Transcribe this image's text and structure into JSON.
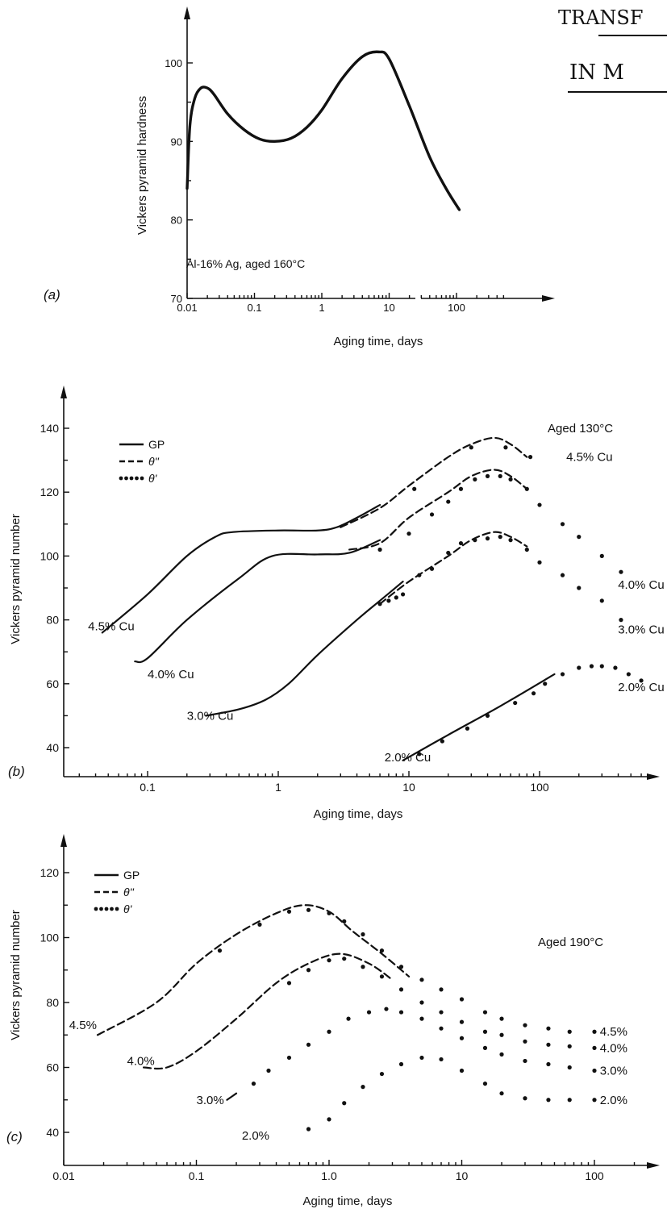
{
  "handwriting": {
    "line1": "TRANSF",
    "line2": "IN M"
  },
  "chart_data": [
    {
      "id": "a",
      "type": "line",
      "panel_label": "(a)",
      "annotation": "Al-16% Ag, aged 160°C",
      "xlabel": "Aging time, days",
      "ylabel": "Vickers pyramid hardness",
      "x_scale": "log",
      "xlim": [
        0.01,
        500
      ],
      "ylim": [
        70,
        107
      ],
      "x_ticks": [
        0.01,
        0.1,
        1,
        10,
        100
      ],
      "x_tick_labels": [
        "0.01",
        "0.1",
        "1",
        "10",
        "100"
      ],
      "y_ticks": [
        70,
        80,
        90,
        100
      ],
      "y_tick_labels": [
        "70",
        "80",
        "90",
        "100"
      ],
      "series": [
        {
          "style": "solid",
          "x": [
            0.01,
            0.011,
            0.013,
            0.016,
            0.02,
            0.025,
            0.04,
            0.07,
            0.12,
            0.2,
            0.35,
            0.6,
            1.0,
            2.0,
            4.0,
            7.0,
            10,
            20,
            40,
            70,
            110
          ],
          "y": [
            84,
            92,
            95.5,
            96.8,
            96.8,
            96,
            93.5,
            91.5,
            90.3,
            90,
            90.4,
            91.8,
            94,
            98,
            100.8,
            101.4,
            100.5,
            94.5,
            88,
            84,
            81.3
          ]
        }
      ]
    },
    {
      "id": "b",
      "type": "line",
      "panel_label": "(b)",
      "title": "Aged 130°C",
      "xlabel": "Aging time, days",
      "ylabel": "Vickers pyramid number",
      "x_scale": "log",
      "xlim": [
        0.02,
        1000
      ],
      "ylim": [
        35,
        150
      ],
      "x_ticks": [
        0.1,
        1,
        10,
        100
      ],
      "x_tick_labels": [
        "0.1",
        "1",
        "10",
        "100"
      ],
      "y_ticks": [
        40,
        60,
        80,
        100,
        120,
        140
      ],
      "y_tick_labels": [
        "40",
        "60",
        "80",
        "100",
        "120",
        "140"
      ],
      "legend": [
        {
          "style": "solid",
          "label": "GP"
        },
        {
          "style": "dashed",
          "label": "θ''"
        },
        {
          "style": "dotted",
          "label": "θ'"
        }
      ],
      "curve_labels": [
        {
          "text": "4.5% Cu",
          "x": 0.035,
          "y": 78
        },
        {
          "text": "4.0% Cu",
          "x": 0.1,
          "y": 63
        },
        {
          "text": "3.0% Cu",
          "x": 0.2,
          "y": 50
        },
        {
          "text": "2.0% Cu",
          "x": 6.5,
          "y": 37
        },
        {
          "text": "4.5% Cu",
          "x": 160,
          "y": 131
        },
        {
          "text": "4.0% Cu",
          "x": 660,
          "y": 91
        },
        {
          "text": "3.0% Cu",
          "x": 560,
          "y": 77
        },
        {
          "text": "2.0% Cu",
          "x": 900,
          "y": 59
        }
      ],
      "series": [
        {
          "alloy": "4.5% Cu",
          "phase": "GP",
          "style": "solid",
          "x": [
            0.045,
            0.1,
            0.2,
            0.33,
            0.45,
            1,
            2,
            2.8,
            4,
            6
          ],
          "y": [
            76,
            88,
            100,
            106,
            107.5,
            108,
            108,
            109,
            112,
            116
          ]
        },
        {
          "alloy": "4.5% Cu",
          "phase": "θ''",
          "style": "dashed",
          "x": [
            3,
            6,
            10,
            20,
            30,
            45,
            60,
            80
          ],
          "y": [
            109,
            115,
            122,
            131,
            135,
            137,
            135,
            131
          ]
        },
        {
          "alloy": "4.5% Cu",
          "phase": "θ'",
          "style": "dotted",
          "x": [
            11,
            30,
            55,
            85
          ],
          "y": [
            121,
            134,
            134,
            131
          ]
        },
        {
          "alloy": "4.0% Cu",
          "phase": "GP",
          "style": "solid",
          "x": [
            0.08,
            0.1,
            0.2,
            0.5,
            0.9,
            2,
            3.5,
            6
          ],
          "y": [
            67,
            68,
            80,
            93,
            100,
            100.5,
            101,
            105
          ]
        },
        {
          "alloy": "4.0% Cu",
          "phase": "θ''",
          "style": "dashed",
          "x": [
            3.5,
            6,
            10,
            20,
            30,
            45,
            60,
            80
          ],
          "y": [
            102,
            104,
            112,
            120,
            125,
            127,
            125,
            121
          ]
        },
        {
          "alloy": "4.0% Cu",
          "phase": "θ'",
          "style": "dotted",
          "x": [
            6,
            10,
            15,
            20,
            25,
            32,
            40,
            50,
            60,
            80,
            100,
            150,
            200,
            300,
            420
          ],
          "y": [
            102,
            107,
            113,
            117,
            121,
            124,
            125,
            125,
            124,
            121,
            116,
            110,
            106,
            100,
            95
          ]
        },
        {
          "alloy": "3.0% Cu",
          "phase": "GP",
          "style": "solid",
          "x": [
            0.28,
            0.5,
            0.8,
            1.2,
            2,
            4,
            6,
            9
          ],
          "y": [
            50,
            52,
            55,
            60,
            69,
            80,
            86,
            92
          ]
        },
        {
          "alloy": "3.0% Cu",
          "phase": "θ''",
          "style": "dashed",
          "x": [
            6,
            10,
            20,
            30,
            45,
            60,
            80
          ],
          "y": [
            85,
            92,
            100,
            105,
            107.5,
            106,
            103
          ]
        },
        {
          "alloy": "3.0% Cu",
          "phase": "θ'",
          "style": "dotted",
          "x": [
            6,
            7,
            8,
            9,
            12,
            15,
            20,
            25,
            32,
            40,
            50,
            60,
            80,
            100,
            150,
            200,
            300,
            420
          ],
          "y": [
            85,
            86,
            87,
            88,
            94,
            96,
            101,
            104,
            105,
            105.5,
            106,
            105,
            102,
            98,
            94,
            90,
            86,
            80
          ]
        },
        {
          "alloy": "2.0% Cu",
          "phase": "GP",
          "style": "solid",
          "x": [
            9,
            20,
            50,
            130
          ],
          "y": [
            36,
            44,
            53,
            63
          ]
        },
        {
          "alloy": "2.0% Cu",
          "phase": "θ'",
          "style": "dotted",
          "x": [
            12,
            18,
            28,
            40,
            65,
            90,
            110,
            150,
            200,
            250,
            300,
            380,
            480,
            600
          ],
          "y": [
            38,
            42,
            46,
            50,
            54,
            57,
            60,
            63,
            65,
            65.5,
            65.5,
            65,
            63,
            61
          ]
        }
      ]
    },
    {
      "id": "c",
      "type": "line",
      "panel_label": "(c)",
      "title": "Aged 190°C",
      "xlabel": "Aging time, days",
      "ylabel": "Vickers pyramid number",
      "x_scale": "log",
      "xlim": [
        0.01,
        500
      ],
      "ylim": [
        35,
        128
      ],
      "x_ticks": [
        0.01,
        0.1,
        1,
        10,
        100
      ],
      "x_tick_labels": [
        "0.01",
        "0.1",
        "1.0",
        "10",
        "100"
      ],
      "y_ticks": [
        40,
        60,
        80,
        100,
        120
      ],
      "y_tick_labels": [
        "40",
        "60",
        "80",
        "100",
        "120"
      ],
      "legend": [
        {
          "style": "solid",
          "label": "GP"
        },
        {
          "style": "dashed",
          "label": "θ''"
        },
        {
          "style": "dotted",
          "label": "θ'"
        }
      ],
      "curve_labels": [
        {
          "text": "4.5%",
          "x": 0.011,
          "y": 73
        },
        {
          "text": "4.0%",
          "x": 0.03,
          "y": 62
        },
        {
          "text": "3.0%",
          "x": 0.1,
          "y": 50
        },
        {
          "text": "2.0%",
          "x": 0.22,
          "y": 39
        },
        {
          "text": "4.5%",
          "x": 110,
          "y": 71
        },
        {
          "text": "4.0%",
          "x": 110,
          "y": 66
        },
        {
          "text": "3.0%",
          "x": 110,
          "y": 59
        },
        {
          "text": "2.0%",
          "x": 110,
          "y": 50
        }
      ],
      "series": [
        {
          "alloy": "4.5%",
          "phase": "θ''",
          "style": "dashed",
          "x": [
            0.018,
            0.05,
            0.1,
            0.2,
            0.4,
            0.65,
            1.0,
            1.5,
            2.5,
            4
          ],
          "y": [
            70,
            80,
            92,
            101,
            107.5,
            110,
            108,
            102,
            95,
            88
          ]
        },
        {
          "alloy": "4.5%",
          "phase": "θ'",
          "style": "dotted",
          "x": [
            0.15,
            0.3,
            0.5,
            0.7,
            1.0,
            1.3,
            1.8,
            2.5,
            3.5,
            5,
            7,
            10,
            15,
            20,
            30,
            45,
            65,
            100
          ],
          "y": [
            96,
            104,
            108,
            108.5,
            107.5,
            105,
            101,
            96,
            91,
            87,
            84,
            81,
            77,
            75,
            73,
            72,
            71,
            71
          ]
        },
        {
          "alloy": "4.0%",
          "phase": "θ''",
          "style": "dashed",
          "x": [
            0.04,
            0.06,
            0.1,
            0.2,
            0.4,
            0.7,
            1.2,
            2.0,
            3.0
          ],
          "y": [
            60,
            60,
            65,
            75,
            86,
            92,
            95,
            92,
            87
          ]
        },
        {
          "alloy": "4.0%",
          "phase": "θ'",
          "style": "dotted",
          "x": [
            0.5,
            0.7,
            1.0,
            1.3,
            1.8,
            2.5,
            3.5,
            5,
            7,
            10,
            15,
            20,
            30,
            45,
            65,
            100
          ],
          "y": [
            86,
            90,
            93,
            93.5,
            91,
            88,
            84,
            80,
            77,
            74,
            71,
            70,
            68,
            67,
            66.5,
            66
          ]
        },
        {
          "alloy": "3.0%",
          "phase": "GP",
          "style": "solid",
          "x": [
            0.17,
            0.2
          ],
          "y": [
            50,
            52
          ]
        },
        {
          "alloy": "3.0%",
          "phase": "θ'",
          "style": "dotted",
          "x": [
            0.27,
            0.35,
            0.5,
            0.7,
            1.0,
            1.4,
            2.0,
            2.7,
            3.5,
            5,
            7,
            10,
            15,
            20,
            30,
            45,
            65,
            100
          ],
          "y": [
            55,
            59,
            63,
            67,
            71,
            75,
            77,
            78,
            77,
            75,
            72,
            69,
            66,
            64,
            62,
            61,
            60,
            59
          ]
        },
        {
          "alloy": "2.0%",
          "phase": "θ'",
          "style": "dotted",
          "x": [
            0.7,
            1.0,
            1.3,
            1.8,
            2.5,
            3.5,
            5,
            7,
            10,
            15,
            20,
            30,
            45,
            65,
            100
          ],
          "y": [
            41,
            44,
            49,
            54,
            58,
            61,
            63,
            62.5,
            59,
            55,
            52,
            50.5,
            50,
            50,
            50
          ]
        }
      ]
    }
  ]
}
